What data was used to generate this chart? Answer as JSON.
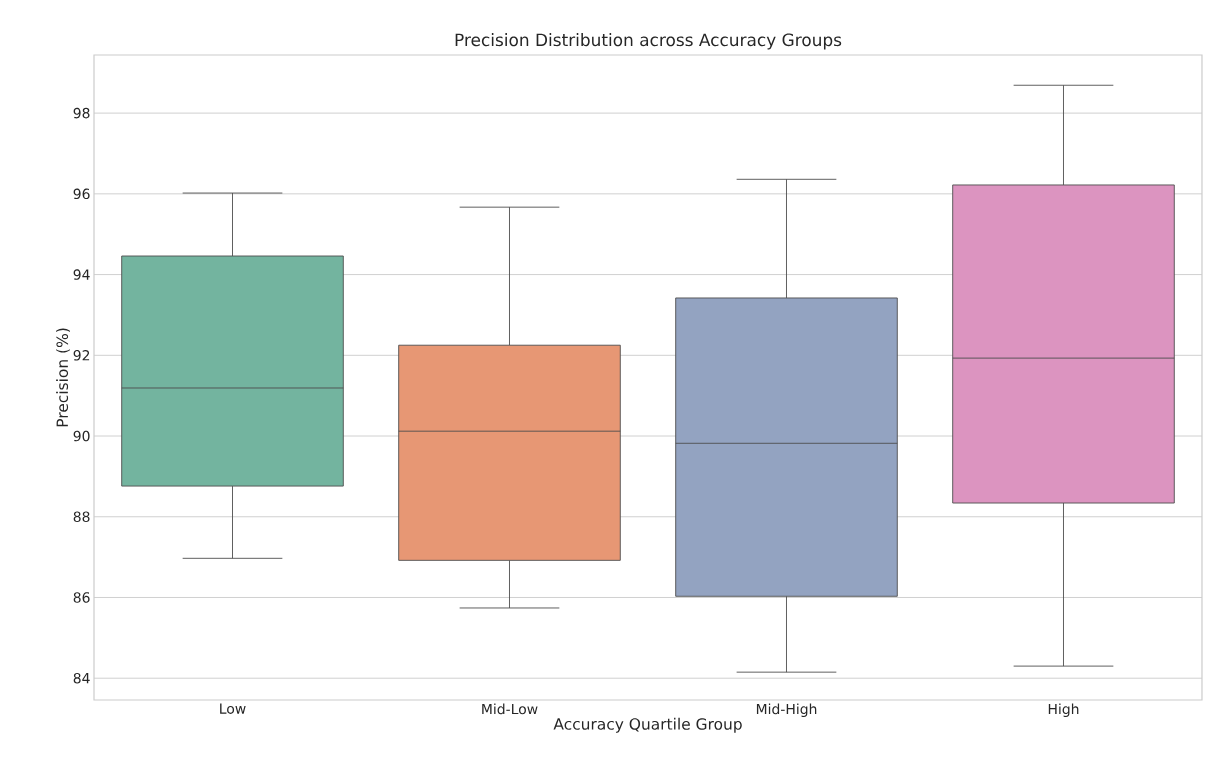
{
  "chart_data": {
    "type": "box",
    "title": "Precision Distribution across Accuracy Groups",
    "xlabel": "Accuracy Quartile Group",
    "ylabel": "Precision (%)",
    "categories": [
      "Low",
      "Mid-Low",
      "Mid-High",
      "High"
    ],
    "boxes": [
      {
        "low": 86.97,
        "q1": 88.76,
        "median": 91.19,
        "q3": 94.46,
        "high": 96.02
      },
      {
        "low": 85.74,
        "q1": 86.92,
        "median": 90.12,
        "q3": 92.25,
        "high": 95.67
      },
      {
        "low": 84.15,
        "q1": 86.03,
        "median": 89.82,
        "q3": 93.42,
        "high": 96.36
      },
      {
        "low": 84.3,
        "q1": 88.34,
        "median": 91.93,
        "q3": 96.22,
        "high": 98.69
      }
    ],
    "colors": [
      "#73b49f",
      "#e79774",
      "#93a3c1",
      "#dc94c0"
    ],
    "ylim": [
      83.46,
      99.44
    ],
    "yticks": [
      84,
      86,
      88,
      90,
      92,
      94,
      96,
      98
    ],
    "grid": "y"
  }
}
